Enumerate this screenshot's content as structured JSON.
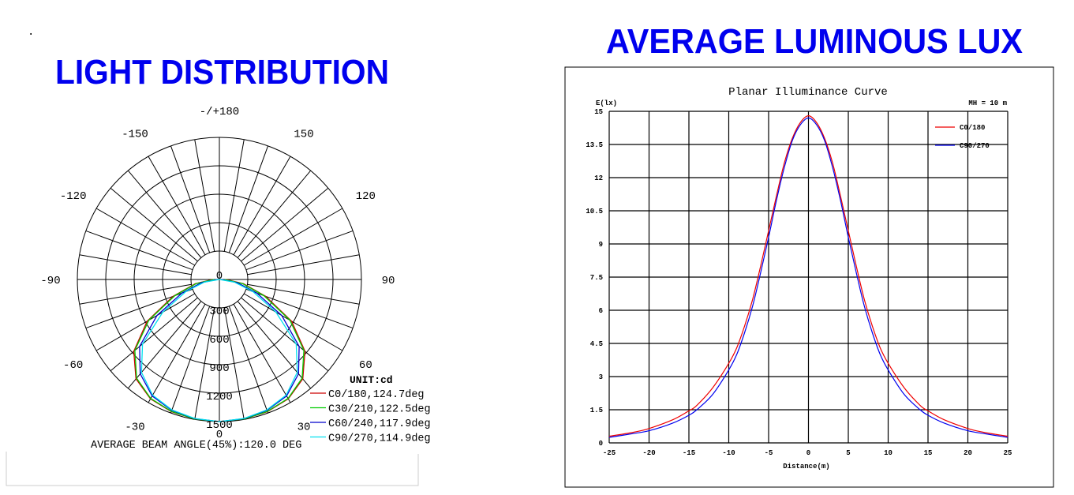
{
  "page": {
    "dot": ".",
    "left_title": "LIGHT DISTRIBUTION",
    "right_title": "AVERAGE LUMINOUS LUX",
    "colors": {
      "title": "#0000ee"
    }
  },
  "chart_data": [
    {
      "type": "polar",
      "title": "LIGHT DISTRIBUTION",
      "unit_label": "UNIT:cd",
      "footer": "AVERAGE BEAM ANGLE(45%):120.0 DEG",
      "angle_labels": [
        "0",
        "30",
        "60",
        "90",
        "120",
        "150",
        "-/+180",
        "-150",
        "-120",
        "-90",
        "-60",
        "-30"
      ],
      "angle_values": [
        0,
        30,
        60,
        90,
        120,
        150,
        180,
        -150,
        -120,
        -90,
        -60,
        -30
      ],
      "radial_labels": [
        "0",
        "300",
        "600",
        "900",
        "1200",
        "1500"
      ],
      "radial_values": [
        0,
        300,
        600,
        900,
        1200,
        1500
      ],
      "rmax": 1500,
      "angles": [
        0,
        10,
        20,
        30,
        40,
        50,
        60,
        70,
        80,
        90
      ],
      "series": [
        {
          "name": "C0/180,124.7deg",
          "color": "#cc0000",
          "values": [
            1500,
            1495,
            1485,
            1455,
            1370,
            1180,
            880,
            520,
            260,
            70
          ]
        },
        {
          "name": "C30/210,122.5deg",
          "color": "#00cc00",
          "values": [
            1500,
            1495,
            1482,
            1450,
            1360,
            1165,
            860,
            500,
            245,
            55
          ]
        },
        {
          "name": "C60/240,117.9deg",
          "color": "#0000cc",
          "values": [
            1500,
            1492,
            1470,
            1420,
            1300,
            1100,
            760,
            420,
            190,
            20
          ]
        },
        {
          "name": "C90/270,114.9deg",
          "color": "#00e0ee",
          "values": [
            1500,
            1490,
            1465,
            1410,
            1280,
            1060,
            690,
            380,
            160,
            0
          ]
        }
      ]
    },
    {
      "type": "line",
      "title": "Planar Illuminance Curve",
      "xlabel": "Distance(m)",
      "ylabel": "E(lx)",
      "annotation": "MH = 10 m",
      "xlim": [
        -25,
        25
      ],
      "ylim": [
        0,
        15
      ],
      "xticks": [
        "-25",
        "-20",
        "-15",
        "-10",
        "-5",
        "0",
        "5",
        "10",
        "15",
        "20",
        "25"
      ],
      "yticks": [
        "0",
        "1.5",
        "3",
        "4.5",
        "6",
        "7.5",
        "9",
        "10.5",
        "12",
        "13.5",
        "15"
      ],
      "grid": true,
      "legend_position": "top-right",
      "x": [
        0,
        1,
        2,
        3,
        4,
        5,
        6,
        7,
        8,
        9,
        10,
        12,
        14,
        15,
        17,
        20,
        22,
        25
      ],
      "series": [
        {
          "name": "C0/180",
          "color": "#ee0000",
          "values": [
            14.8,
            14.5,
            13.8,
            12.7,
            11.2,
            9.6,
            8.0,
            6.5,
            5.3,
            4.3,
            3.6,
            2.5,
            1.7,
            1.45,
            1.05,
            0.65,
            0.48,
            0.3
          ]
        },
        {
          "name": "C90/270",
          "color": "#0000ee",
          "values": [
            14.7,
            14.4,
            13.7,
            12.5,
            11.0,
            9.3,
            7.7,
            6.2,
            5.0,
            4.0,
            3.3,
            2.2,
            1.5,
            1.25,
            0.9,
            0.55,
            0.42,
            0.25
          ]
        }
      ]
    }
  ]
}
